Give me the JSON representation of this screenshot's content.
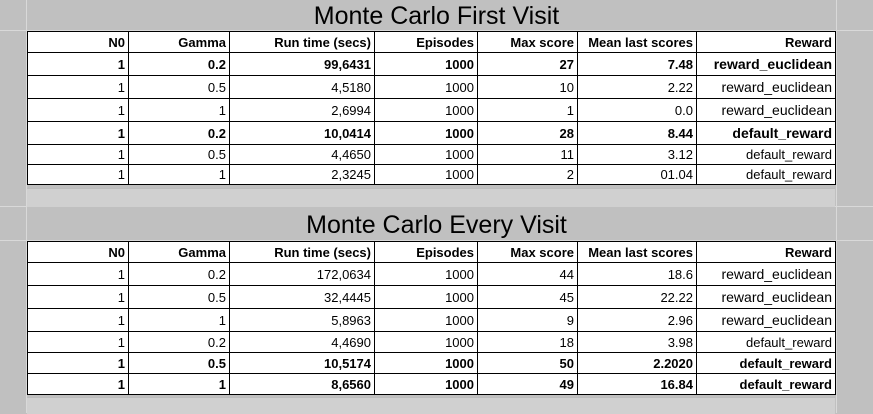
{
  "tables": [
    {
      "title": "Monte Carlo First Visit",
      "headers": [
        "N0",
        "Gamma",
        "Run time (secs)",
        "Episodes",
        "Max score",
        "Mean last scores",
        "Reward"
      ],
      "rows": [
        {
          "bold": true,
          "cells": [
            "1",
            "0.2",
            "99,6431",
            "1000",
            "27",
            "7.48",
            "reward_euclidean"
          ]
        },
        {
          "bold": false,
          "cells": [
            "1",
            "0.5",
            "4,5180",
            "1000",
            "10",
            "2.22",
            "reward_euclidean"
          ]
        },
        {
          "bold": false,
          "cells": [
            "1",
            "1",
            "2,6994",
            "1000",
            "1",
            "0.0",
            "reward_euclidean"
          ]
        },
        {
          "bold": true,
          "cells": [
            "1",
            "0.2",
            "10,0414",
            "1000",
            "28",
            "8.44",
            "default_reward"
          ]
        },
        {
          "bold": false,
          "cells": [
            "1",
            "0.5",
            "4,4650",
            "1000",
            "11",
            "3.12",
            "default_reward"
          ]
        },
        {
          "bold": false,
          "cells": [
            "1",
            "1",
            "2,3245",
            "1000",
            "2",
            "01.04",
            "default_reward"
          ]
        }
      ]
    },
    {
      "title": "Monte Carlo Every Visit",
      "headers": [
        "N0",
        "Gamma",
        "Run time (secs)",
        "Episodes",
        "Max score",
        "Mean last scores",
        "Reward"
      ],
      "rows": [
        {
          "bold": false,
          "cells": [
            "1",
            "0.2",
            "172,0634",
            "1000",
            "44",
            "18.6",
            "reward_euclidean"
          ]
        },
        {
          "bold": false,
          "cells": [
            "1",
            "0.5",
            "32,4445",
            "1000",
            "45",
            "22.22",
            "reward_euclidean"
          ]
        },
        {
          "bold": false,
          "cells": [
            "1",
            "1",
            "5,8963",
            "1000",
            "9",
            "2.96",
            "reward_euclidean"
          ]
        },
        {
          "bold": false,
          "cells": [
            "1",
            "0.2",
            "4,4690",
            "1000",
            "18",
            "3.98",
            "default_reward"
          ]
        },
        {
          "bold": true,
          "cells": [
            "1",
            "0.5",
            "10,5174",
            "1000",
            "50",
            "2.2020",
            "default_reward"
          ]
        },
        {
          "bold": true,
          "cells": [
            "1",
            "1",
            "8,6560",
            "1000",
            "49",
            "16.84",
            "default_reward"
          ]
        }
      ]
    }
  ]
}
